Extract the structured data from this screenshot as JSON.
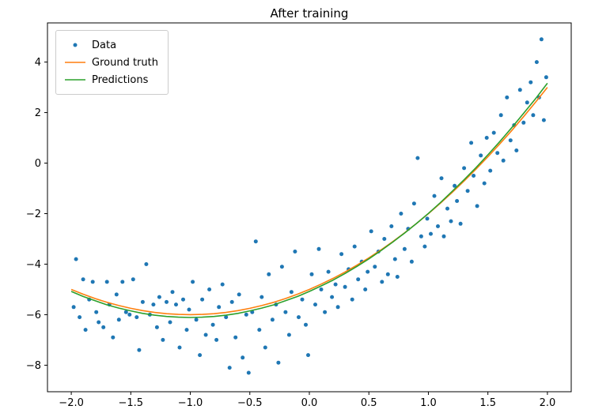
{
  "figure": {
    "title": "After training",
    "background": "#ffffff"
  },
  "colors": {
    "data": "#1f77b4",
    "ground_truth": "#ff7f0e",
    "predictions": "#2ca02c",
    "axis": "#000000",
    "legend_border": "#cccccc"
  },
  "legend": {
    "position": "upper left",
    "items": [
      "Data",
      "Ground truth",
      "Predictions"
    ]
  },
  "chart_data": {
    "type": "scatter",
    "title": "After training",
    "xlabel": "",
    "ylabel": "",
    "grid": false,
    "legend_position": "upper left",
    "axis_color": "#000000",
    "xlim": [
      -2.2,
      2.2
    ],
    "ylim": [
      -9.05,
      5.55
    ],
    "x_ticks": [
      {
        "value": -2.0,
        "label": "−2.0"
      },
      {
        "value": -1.5,
        "label": "−1.5"
      },
      {
        "value": -1.0,
        "label": "−1.0"
      },
      {
        "value": -0.5,
        "label": "−0.5"
      },
      {
        "value": 0.0,
        "label": "0.0"
      },
      {
        "value": 0.5,
        "label": "0.5"
      },
      {
        "value": 1.0,
        "label": "1.0"
      },
      {
        "value": 1.5,
        "label": "1.5"
      },
      {
        "value": 2.0,
        "label": "2.0"
      }
    ],
    "y_ticks": [
      {
        "value": 4,
        "label": "4"
      },
      {
        "value": 2,
        "label": "2"
      },
      {
        "value": 0,
        "label": "0"
      },
      {
        "value": -2,
        "label": "−2"
      },
      {
        "value": -4,
        "label": "−4"
      },
      {
        "value": -6,
        "label": "−6"
      },
      {
        "value": -8,
        "label": "−8"
      }
    ],
    "series": [
      {
        "name": "Data",
        "type": "scatter",
        "color": "#1f77b4",
        "marker_radius": 2.5,
        "points": [
          [
            -1.98,
            -5.7
          ],
          [
            -1.96,
            -3.8
          ],
          [
            -1.93,
            -6.1
          ],
          [
            -1.9,
            -4.6
          ],
          [
            -1.88,
            -6.6
          ],
          [
            -1.85,
            -5.4
          ],
          [
            -1.82,
            -4.7
          ],
          [
            -1.79,
            -5.9
          ],
          [
            -1.77,
            -6.3
          ],
          [
            -1.73,
            -6.5
          ],
          [
            -1.7,
            -4.7
          ],
          [
            -1.68,
            -5.6
          ],
          [
            -1.65,
            -6.9
          ],
          [
            -1.62,
            -5.2
          ],
          [
            -1.6,
            -6.2
          ],
          [
            -1.57,
            -4.7
          ],
          [
            -1.54,
            -5.9
          ],
          [
            -1.51,
            -6.0
          ],
          [
            -1.48,
            -4.6
          ],
          [
            -1.45,
            -6.1
          ],
          [
            -1.43,
            -7.4
          ],
          [
            -1.4,
            -5.5
          ],
          [
            -1.37,
            -4.0
          ],
          [
            -1.34,
            -6.0
          ],
          [
            -1.31,
            -5.6
          ],
          [
            -1.28,
            -6.5
          ],
          [
            -1.26,
            -5.3
          ],
          [
            -1.23,
            -7.0
          ],
          [
            -1.2,
            -5.5
          ],
          [
            -1.17,
            -6.3
          ],
          [
            -1.15,
            -5.1
          ],
          [
            -1.12,
            -5.6
          ],
          [
            -1.09,
            -7.3
          ],
          [
            -1.06,
            -5.4
          ],
          [
            -1.03,
            -6.6
          ],
          [
            -1.01,
            -5.8
          ],
          [
            -0.98,
            -4.7
          ],
          [
            -0.95,
            -6.2
          ],
          [
            -0.92,
            -7.6
          ],
          [
            -0.9,
            -5.4
          ],
          [
            -0.87,
            -6.8
          ],
          [
            -0.84,
            -5.0
          ],
          [
            -0.81,
            -6.4
          ],
          [
            -0.78,
            -7.0
          ],
          [
            -0.76,
            -5.7
          ],
          [
            -0.73,
            -4.8
          ],
          [
            -0.7,
            -6.1
          ],
          [
            -0.67,
            -8.1
          ],
          [
            -0.65,
            -5.5
          ],
          [
            -0.62,
            -6.9
          ],
          [
            -0.59,
            -5.2
          ],
          [
            -0.56,
            -7.7
          ],
          [
            -0.53,
            -6.0
          ],
          [
            -0.51,
            -8.3
          ],
          [
            -0.48,
            -5.9
          ],
          [
            -0.45,
            -3.1
          ],
          [
            -0.42,
            -6.6
          ],
          [
            -0.4,
            -5.3
          ],
          [
            -0.37,
            -7.3
          ],
          [
            -0.34,
            -4.4
          ],
          [
            -0.31,
            -6.2
          ],
          [
            -0.28,
            -5.6
          ],
          [
            -0.26,
            -7.9
          ],
          [
            -0.23,
            -4.1
          ],
          [
            -0.2,
            -5.9
          ],
          [
            -0.17,
            -6.8
          ],
          [
            -0.15,
            -5.1
          ],
          [
            -0.12,
            -3.5
          ],
          [
            -0.09,
            -6.1
          ],
          [
            -0.06,
            -5.4
          ],
          [
            -0.03,
            -6.4
          ],
          [
            -0.01,
            -7.6
          ],
          [
            0.02,
            -4.4
          ],
          [
            0.05,
            -5.6
          ],
          [
            0.08,
            -3.4
          ],
          [
            0.1,
            -5.0
          ],
          [
            0.13,
            -5.9
          ],
          [
            0.16,
            -4.3
          ],
          [
            0.19,
            -5.3
          ],
          [
            0.22,
            -4.8
          ],
          [
            0.24,
            -5.7
          ],
          [
            0.27,
            -3.6
          ],
          [
            0.3,
            -4.9
          ],
          [
            0.33,
            -4.2
          ],
          [
            0.36,
            -5.4
          ],
          [
            0.38,
            -3.3
          ],
          [
            0.41,
            -4.6
          ],
          [
            0.44,
            -3.9
          ],
          [
            0.47,
            -5.0
          ],
          [
            0.49,
            -4.3
          ],
          [
            0.52,
            -2.7
          ],
          [
            0.55,
            -4.1
          ],
          [
            0.58,
            -3.5
          ],
          [
            0.61,
            -4.7
          ],
          [
            0.63,
            -3.0
          ],
          [
            0.66,
            -4.4
          ],
          [
            0.69,
            -2.5
          ],
          [
            0.72,
            -3.8
          ],
          [
            0.74,
            -4.5
          ],
          [
            0.77,
            -2.0
          ],
          [
            0.8,
            -3.4
          ],
          [
            0.83,
            -2.6
          ],
          [
            0.86,
            -3.9
          ],
          [
            0.88,
            -1.6
          ],
          [
            0.91,
            0.2
          ],
          [
            0.94,
            -2.9
          ],
          [
            0.97,
            -3.3
          ],
          [
            0.99,
            -2.2
          ],
          [
            1.02,
            -2.8
          ],
          [
            1.05,
            -1.3
          ],
          [
            1.08,
            -2.5
          ],
          [
            1.11,
            -0.6
          ],
          [
            1.13,
            -2.9
          ],
          [
            1.16,
            -1.8
          ],
          [
            1.19,
            -2.3
          ],
          [
            1.22,
            -0.9
          ],
          [
            1.24,
            -1.5
          ],
          [
            1.27,
            -2.4
          ],
          [
            1.3,
            -0.2
          ],
          [
            1.33,
            -1.1
          ],
          [
            1.36,
            0.8
          ],
          [
            1.38,
            -0.5
          ],
          [
            1.41,
            -1.7
          ],
          [
            1.44,
            0.3
          ],
          [
            1.47,
            -0.8
          ],
          [
            1.49,
            1.0
          ],
          [
            1.52,
            -0.3
          ],
          [
            1.55,
            1.2
          ],
          [
            1.58,
            0.4
          ],
          [
            1.61,
            1.9
          ],
          [
            1.63,
            0.1
          ],
          [
            1.66,
            2.6
          ],
          [
            1.69,
            0.9
          ],
          [
            1.72,
            1.5
          ],
          [
            1.74,
            0.5
          ],
          [
            1.77,
            2.9
          ],
          [
            1.8,
            1.6
          ],
          [
            1.83,
            2.4
          ],
          [
            1.86,
            3.2
          ],
          [
            1.88,
            1.9
          ],
          [
            1.91,
            4.0
          ],
          [
            1.93,
            2.6
          ],
          [
            1.95,
            4.9
          ],
          [
            1.97,
            1.7
          ],
          [
            1.99,
            3.4
          ]
        ]
      },
      {
        "name": "Ground truth",
        "type": "line",
        "color": "#ff7f0e",
        "equation": "y = x^2 + 2x - 5",
        "x": [
          -2.0,
          -1.9,
          -1.8,
          -1.7,
          -1.6,
          -1.5,
          -1.4,
          -1.3,
          -1.2,
          -1.1,
          -1.0,
          -0.9,
          -0.8,
          -0.7,
          -0.6,
          -0.5,
          -0.4,
          -0.3,
          -0.2,
          -0.1,
          0.0,
          0.1,
          0.2,
          0.3,
          0.4,
          0.5,
          0.6,
          0.7,
          0.8,
          0.9,
          1.0,
          1.1,
          1.2,
          1.3,
          1.4,
          1.5,
          1.6,
          1.7,
          1.8,
          1.9,
          2.0
        ],
        "y": [
          -5.0,
          -5.19,
          -5.36,
          -5.51,
          -5.64,
          -5.75,
          -5.84,
          -5.91,
          -5.96,
          -5.99,
          -6.0,
          -5.99,
          -5.96,
          -5.91,
          -5.84,
          -5.75,
          -5.64,
          -5.51,
          -5.36,
          -5.19,
          -5.0,
          -4.79,
          -4.56,
          -4.31,
          -4.04,
          -3.75,
          -3.44,
          -3.11,
          -2.76,
          -2.39,
          -2.0,
          -1.59,
          -1.16,
          -0.71,
          -0.24,
          0.25,
          0.76,
          1.29,
          1.84,
          2.41,
          3.0
        ]
      },
      {
        "name": "Predictions",
        "type": "line",
        "color": "#2ca02c",
        "x": [
          -2.0,
          -1.9,
          -1.8,
          -1.7,
          -1.6,
          -1.5,
          -1.4,
          -1.3,
          -1.2,
          -1.1,
          -1.0,
          -0.9,
          -0.8,
          -0.7,
          -0.6,
          -0.5,
          -0.4,
          -0.3,
          -0.2,
          -0.1,
          0.0,
          0.1,
          0.2,
          0.3,
          0.4,
          0.5,
          0.6,
          0.7,
          0.8,
          0.9,
          1.0,
          1.1,
          1.2,
          1.3,
          1.4,
          1.5,
          1.6,
          1.7,
          1.8,
          1.9,
          2.0
        ],
        "y": [
          -5.08,
          -5.28,
          -5.45,
          -5.61,
          -5.74,
          -5.85,
          -5.95,
          -6.02,
          -6.07,
          -6.1,
          -6.11,
          -6.1,
          -6.07,
          -6.02,
          -5.95,
          -5.85,
          -5.74,
          -5.61,
          -5.45,
          -5.28,
          -5.08,
          -4.86,
          -4.63,
          -4.37,
          -4.09,
          -3.79,
          -3.47,
          -3.13,
          -2.77,
          -2.39,
          -1.99,
          -1.57,
          -1.12,
          -0.66,
          -0.18,
          0.33,
          0.85,
          1.4,
          1.97,
          2.55,
          3.16
        ]
      }
    ]
  }
}
